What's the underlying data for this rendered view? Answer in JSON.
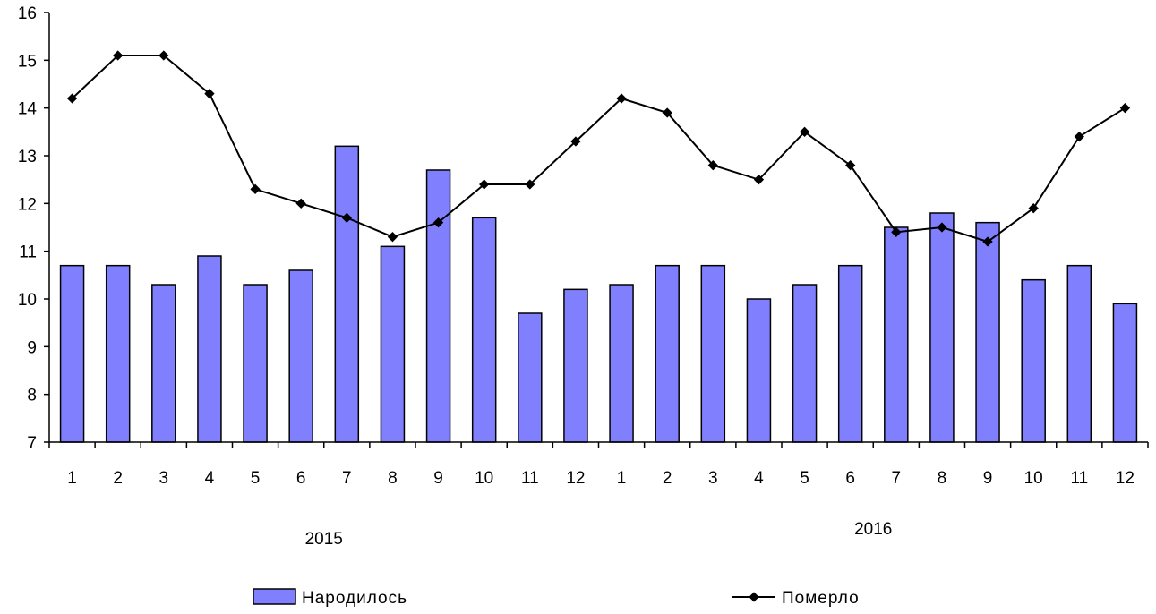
{
  "chart_data": {
    "type": "bar+line",
    "categories": [
      "1",
      "2",
      "3",
      "4",
      "5",
      "6",
      "7",
      "8",
      "9",
      "10",
      "11",
      "12",
      "1",
      "2",
      "3",
      "4",
      "5",
      "6",
      "7",
      "8",
      "9",
      "10",
      "11",
      "12"
    ],
    "years": [
      {
        "label": "2015",
        "from": 0,
        "to": 11
      },
      {
        "label": "2016",
        "from": 12,
        "to": 23
      }
    ],
    "ylim": [
      7,
      16
    ],
    "yticks": [
      7,
      8,
      9,
      10,
      11,
      12,
      13,
      14,
      15,
      16
    ],
    "series": [
      {
        "name": "Народилось",
        "kind": "bar",
        "color": "#8080ff",
        "values": [
          10.7,
          10.7,
          10.3,
          10.9,
          10.3,
          10.6,
          13.2,
          11.1,
          12.7,
          11.7,
          9.7,
          10.2,
          10.3,
          10.7,
          10.7,
          10.0,
          10.3,
          10.7,
          11.5,
          11.8,
          11.6,
          10.4,
          10.7,
          9.9
        ]
      },
      {
        "name": "Померло",
        "kind": "line",
        "color": "#000000",
        "values": [
          14.2,
          15.1,
          15.1,
          14.3,
          12.3,
          12.0,
          11.7,
          11.3,
          11.6,
          12.4,
          12.4,
          13.3,
          14.2,
          13.9,
          12.8,
          12.5,
          13.5,
          12.8,
          11.4,
          11.5,
          11.2,
          11.9,
          13.4,
          14.0
        ]
      }
    ],
    "grid": false,
    "legend_position": "bottom"
  }
}
